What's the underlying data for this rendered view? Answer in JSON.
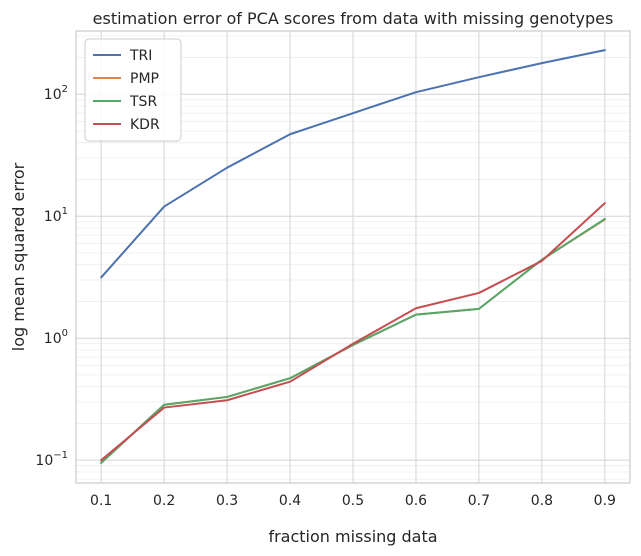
{
  "chart_data": {
    "type": "line",
    "title": "estimation error of PCA scores from data with missing genotypes",
    "xlabel": "fraction missing data",
    "ylabel": "log mean squared error",
    "yscale": "log",
    "xlim": [
      0.06,
      0.94
    ],
    "ylim": [
      0.065,
      330
    ],
    "x": [
      0.1,
      0.2,
      0.3,
      0.4,
      0.5,
      0.6,
      0.7,
      0.8,
      0.9
    ],
    "x_tick_labels": [
      "0.1",
      "0.2",
      "0.3",
      "0.4",
      "0.5",
      "0.6",
      "0.7",
      "0.8",
      "0.9"
    ],
    "y_major_ticks": [
      {
        "value": 0.1,
        "base": "10",
        "exp": "−1"
      },
      {
        "value": 1,
        "base": "10",
        "exp": "0"
      },
      {
        "value": 10,
        "base": "10",
        "exp": "1"
      },
      {
        "value": 100,
        "base": "10",
        "exp": "2"
      }
    ],
    "grid": true,
    "legend_position": "top-left",
    "series": [
      {
        "name": "TRI",
        "color": "#4c72b0",
        "values": [
          3.15,
          12.0,
          25.0,
          47.0,
          70.0,
          104.0,
          138.0,
          180.0,
          230.0
        ]
      },
      {
        "name": "PMP",
        "color": "#dd8452",
        "values": [
          0.095,
          0.285,
          0.33,
          0.47,
          0.88,
          1.56,
          1.74,
          4.4,
          9.4
        ]
      },
      {
        "name": "TSR",
        "color": "#55a868",
        "values": [
          0.095,
          0.285,
          0.33,
          0.47,
          0.88,
          1.56,
          1.74,
          4.4,
          9.5
        ]
      },
      {
        "name": "KDR",
        "color": "#c44e52",
        "values": [
          0.1,
          0.27,
          0.31,
          0.44,
          0.9,
          1.76,
          2.35,
          4.3,
          12.8
        ]
      }
    ]
  }
}
